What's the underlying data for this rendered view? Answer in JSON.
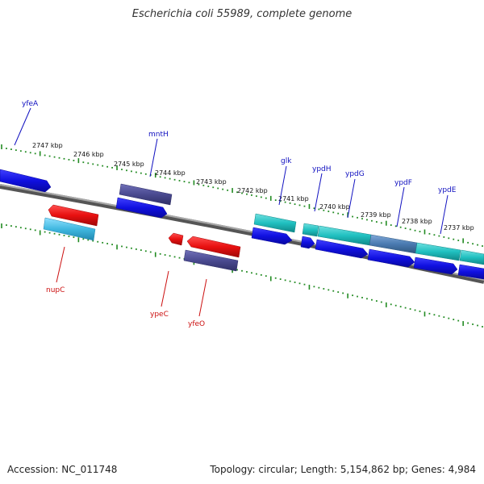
{
  "title": "Escherichia coli 55989, complete genome",
  "footer": {
    "accession": "Accession: NC_011748",
    "topology": "Topology: circular; Length: 5,154,862 bp; Genes: 4,984"
  },
  "colors": {
    "backbone": "#808080",
    "tick": "#228b22",
    "forward_gene": "#1010e0",
    "forward_label": "#1010c0",
    "reverse_gene": "#e81010",
    "reverse_label": "#cc1010",
    "cds_dark": "#4a4a90",
    "cds_cyan": "#20c0c0",
    "cds_lightblue": "#40b8e0",
    "cds_steel": "#4a7ab0"
  },
  "kbp_labels": [
    "2747 kbp",
    "2746 kbp",
    "2745 kbp",
    "2744 kbp",
    "2743 kbp",
    "2742 kbp",
    "2741 kbp",
    "2740 kbp",
    "2739 kbp",
    "2738 kbp",
    "2737 kbp"
  ],
  "gene_labels": {
    "yfeA": "yfeA",
    "mntH": "mntH",
    "glk": "glk",
    "ypdH": "ypdH",
    "ypdG": "ypdG",
    "ypdF": "ypdF",
    "ypdE": "ypdE",
    "nupC": "nupC",
    "ypeC": "ypeC",
    "yfeO": "yfeO"
  }
}
